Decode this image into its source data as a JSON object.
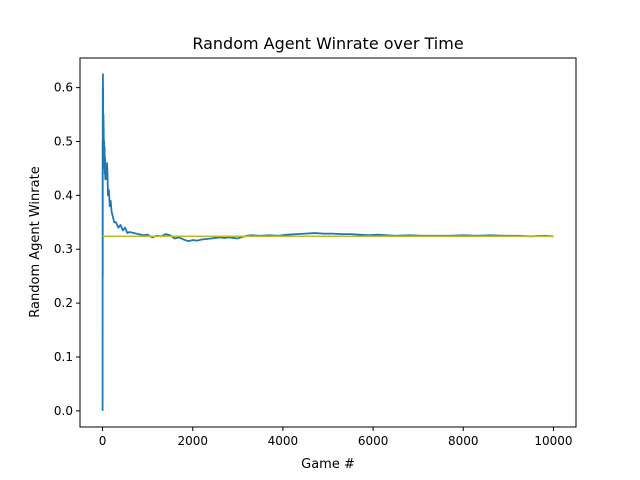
{
  "chart_data": {
    "type": "line",
    "title": "Random Agent Winrate over Time",
    "xlabel": "Game #",
    "ylabel": "Random Agent Winrate",
    "xlim": [
      -500,
      10500
    ],
    "ylim": [
      -0.03,
      0.655
    ],
    "xticks": [
      0,
      2000,
      4000,
      6000,
      8000,
      10000
    ],
    "xtick_labels": [
      "0",
      "2000",
      "4000",
      "6000",
      "8000",
      "10000"
    ],
    "yticks": [
      0.0,
      0.1,
      0.2,
      0.3,
      0.4,
      0.5,
      0.6
    ],
    "ytick_labels": [
      "0.0",
      "0.1",
      "0.2",
      "0.3",
      "0.4",
      "0.5",
      "0.6"
    ],
    "grid": false,
    "legend": "none",
    "series": [
      {
        "color": "#1f77b4",
        "x": [
          1,
          2,
          3,
          4,
          5,
          6,
          8,
          10,
          12,
          15,
          20,
          25,
          30,
          35,
          40,
          45,
          50,
          55,
          60,
          70,
          80,
          90,
          100,
          110,
          120,
          140,
          160,
          180,
          200,
          230,
          260,
          300,
          350,
          400,
          450,
          500,
          550,
          600,
          700,
          800,
          900,
          1000,
          1100,
          1200,
          1300,
          1400,
          1500,
          1600,
          1700,
          1800,
          1900,
          2000,
          2100,
          2200,
          2300,
          2400,
          2500,
          2600,
          2700,
          2800,
          2900,
          3000,
          3100,
          3200,
          3300,
          3500,
          3700,
          3900,
          4100,
          4300,
          4500,
          4700,
          4900,
          5100,
          5300,
          5500,
          5700,
          5900,
          6100,
          6300,
          6500,
          6800,
          7100,
          7400,
          7700,
          8000,
          8300,
          8600,
          8900,
          9200,
          9500,
          9800,
          10000
        ],
        "y": [
          0.0,
          0.5,
          0.33,
          0.25,
          0.6,
          0.5,
          0.625,
          0.56,
          0.6,
          0.53,
          0.55,
          0.52,
          0.47,
          0.5,
          0.45,
          0.49,
          0.44,
          0.47,
          0.43,
          0.45,
          0.44,
          0.43,
          0.46,
          0.44,
          0.4,
          0.41,
          0.38,
          0.39,
          0.37,
          0.36,
          0.35,
          0.35,
          0.34,
          0.345,
          0.335,
          0.34,
          0.33,
          0.332,
          0.33,
          0.328,
          0.326,
          0.327,
          0.322,
          0.325,
          0.324,
          0.328,
          0.326,
          0.32,
          0.322,
          0.318,
          0.315,
          0.317,
          0.316,
          0.318,
          0.319,
          0.32,
          0.321,
          0.322,
          0.321,
          0.322,
          0.321,
          0.32,
          0.323,
          0.325,
          0.326,
          0.325,
          0.326,
          0.325,
          0.327,
          0.328,
          0.329,
          0.33,
          0.329,
          0.329,
          0.328,
          0.328,
          0.327,
          0.326,
          0.327,
          0.326,
          0.325,
          0.326,
          0.325,
          0.325,
          0.325,
          0.326,
          0.325,
          0.326,
          0.325,
          0.325,
          0.324,
          0.325,
          0.324
        ]
      },
      {
        "color": "#bcbd22",
        "x": [
          0,
          10000
        ],
        "y": [
          0.324,
          0.324
        ]
      }
    ]
  }
}
